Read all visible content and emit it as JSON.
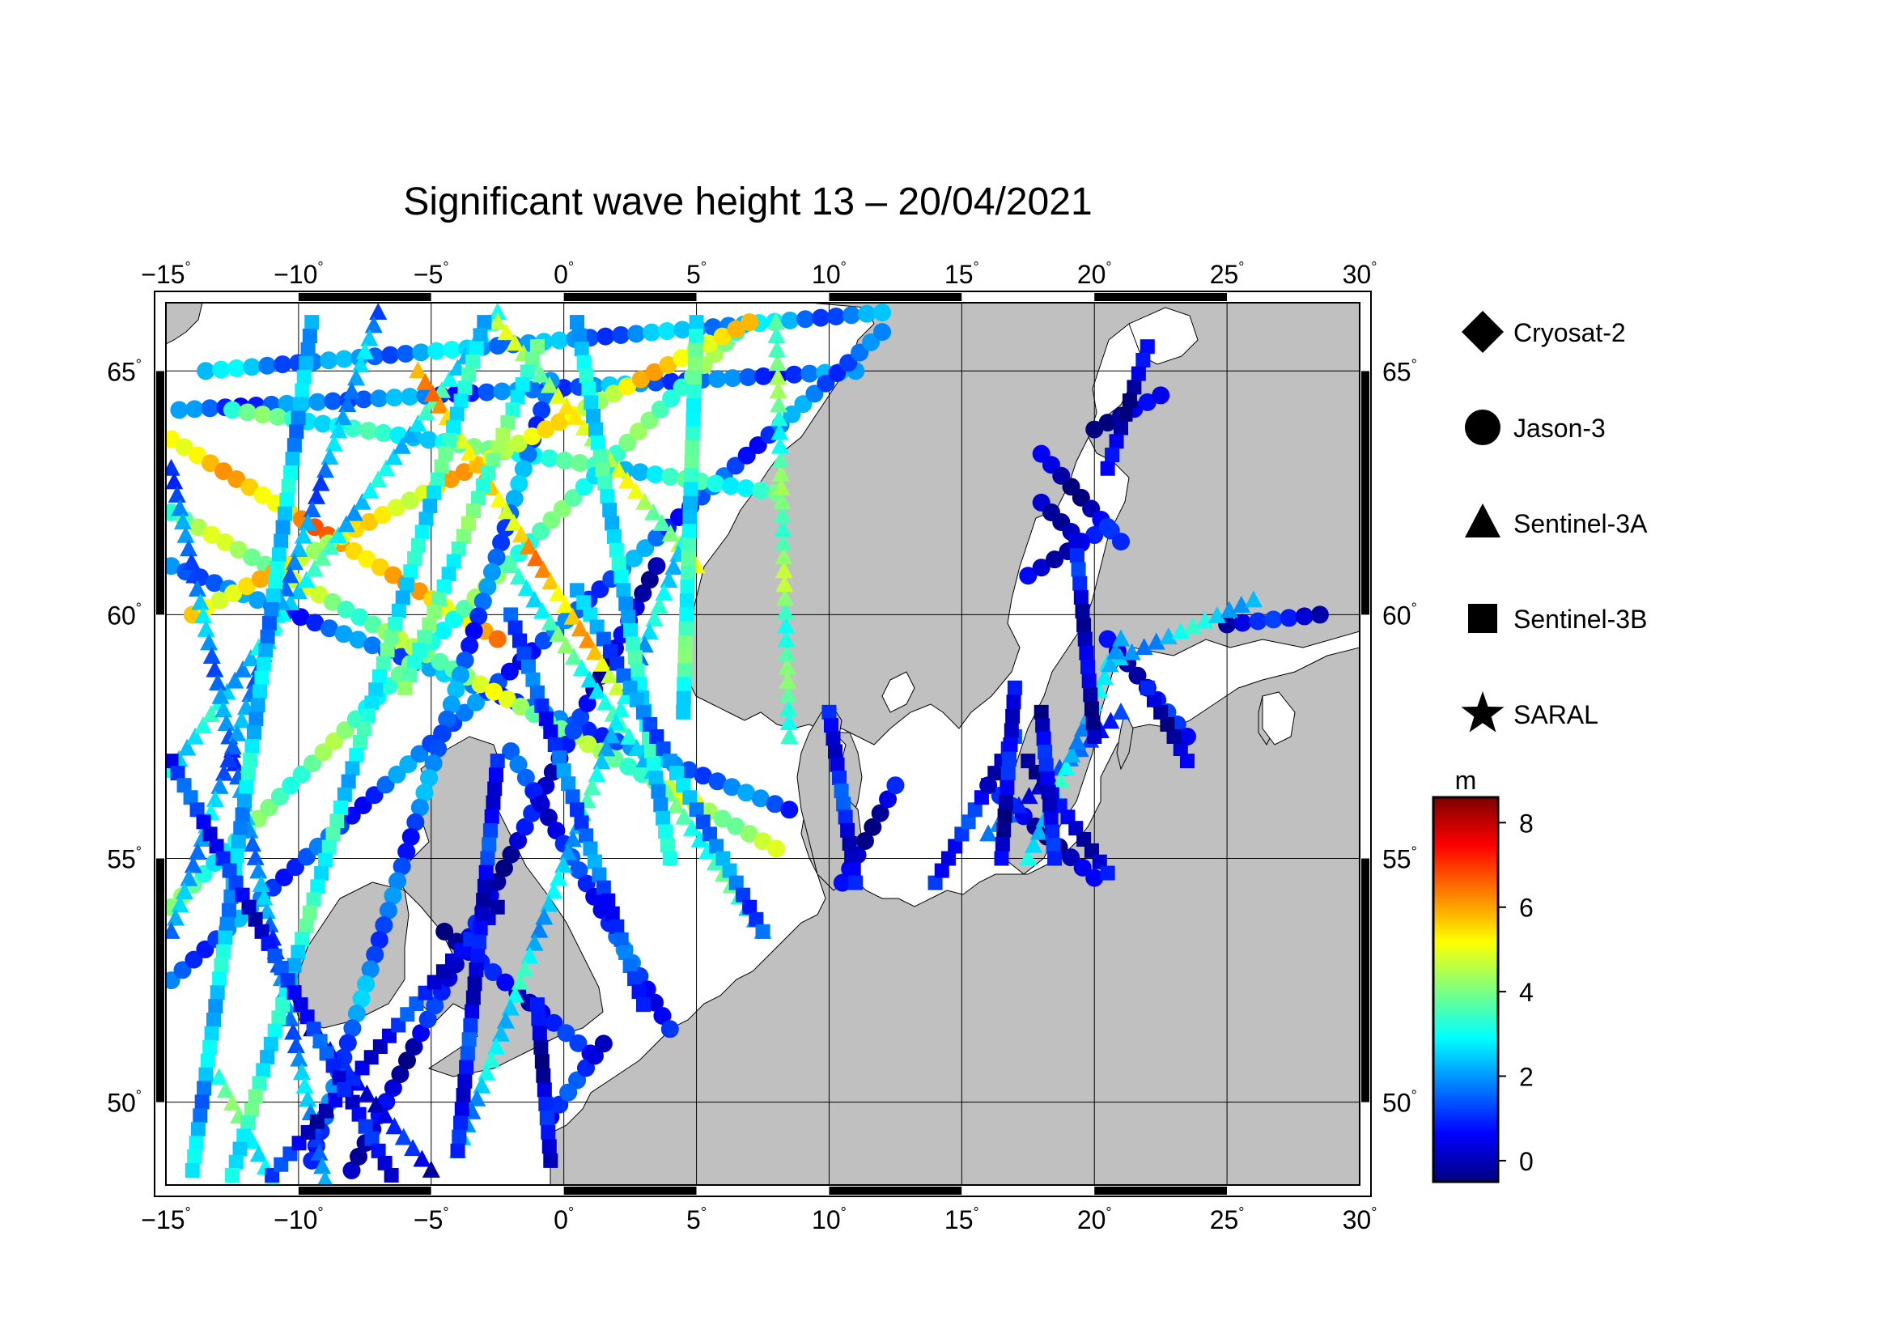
{
  "title": "Significant wave height 13 – 20/04/2021",
  "map": {
    "lon_range": [
      -15,
      30
    ],
    "lat_range": [
      48.3,
      66.4
    ],
    "lon_ticks": [
      "−15",
      "−10",
      "−5",
      "0",
      "5",
      "10",
      "15",
      "20",
      "25",
      "30"
    ],
    "lat_ticks": [
      "50",
      "55",
      "60",
      "65"
    ],
    "degree_symbol": "°",
    "land_color": "#c0c0c0",
    "sea_color": "#ffffff",
    "grid": true
  },
  "legend": {
    "satellites": [
      {
        "name": "Cryosat-2",
        "symbol": "diamond"
      },
      {
        "name": "Jason-3",
        "symbol": "circle"
      },
      {
        "name": "Sentinel-3A",
        "symbol": "triangle"
      },
      {
        "name": "Sentinel-3B",
        "symbol": "square"
      },
      {
        "name": "SARAL",
        "symbol": "star"
      }
    ]
  },
  "colorbar": {
    "unit": "m",
    "min": -0.5,
    "max": 8.6,
    "ticks": [
      "0",
      "2",
      "4",
      "6",
      "8"
    ],
    "colors": [
      "#00007f",
      "#0000ff",
      "#007fff",
      "#00ffff",
      "#7fff7f",
      "#ffff00",
      "#ff7f00",
      "#ff0000",
      "#7f0000"
    ]
  },
  "tracks": [
    {
      "symbol": "circle",
      "from": [
        -13.5,
        65.0
      ],
      "to": [
        12.0,
        66.2
      ],
      "h": 2.0
    },
    {
      "symbol": "circle",
      "from": [
        -14.5,
        64.2
      ],
      "to": [
        11.0,
        65.0
      ],
      "h": 1.6
    },
    {
      "symbol": "circle",
      "from": [
        -14.8,
        52.5
      ],
      "to": [
        12.0,
        65.8
      ],
      "h": 1.4
    },
    {
      "symbol": "circle",
      "from": [
        -14.8,
        61.0
      ],
      "to": [
        8.5,
        56.0
      ],
      "h": 1.6
    },
    {
      "symbol": "circle",
      "from": [
        -14.8,
        63.6
      ],
      "to": [
        -2.5,
        59.5
      ],
      "h": 5.8
    },
    {
      "symbol": "circle",
      "from": [
        -14.8,
        62.1
      ],
      "to": [
        8.0,
        55.2
      ],
      "h": 4.2
    },
    {
      "symbol": "circle",
      "from": [
        -12.5,
        64.2
      ],
      "to": [
        8.0,
        62.5
      ],
      "h": 3.2
    },
    {
      "symbol": "circle",
      "from": [
        -14.8,
        54.0
      ],
      "to": [
        6.5,
        65.8
      ],
      "h": 3.6
    },
    {
      "symbol": "circle",
      "from": [
        -0.5,
        64.8
      ],
      "to": [
        -9.5,
        48.8
      ],
      "h": 1.6
    },
    {
      "symbol": "circle",
      "from": [
        -14.0,
        60.0
      ],
      "to": [
        7.0,
        66.0
      ],
      "h": 5.2
    },
    {
      "symbol": "circle",
      "from": [
        -8.0,
        48.6
      ],
      "to": [
        3.5,
        61.0
      ],
      "h": 0.4
    },
    {
      "symbol": "circle",
      "from": [
        -4.5,
        53.5
      ],
      "to": [
        1.0,
        51.0
      ],
      "h": 0.4
    },
    {
      "symbol": "circle",
      "from": [
        -0.5,
        49.7
      ],
      "to": [
        1.5,
        51.2
      ],
      "h": 0.6
    },
    {
      "symbol": "circle",
      "from": [
        -2.0,
        57.2
      ],
      "to": [
        4.0,
        51.5
      ],
      "h": 1.0
    },
    {
      "symbol": "circle",
      "from": [
        18.0,
        63.3
      ],
      "to": [
        21.0,
        61.5
      ],
      "h": 0.2
    },
    {
      "symbol": "circle",
      "from": [
        17.5,
        60.8
      ],
      "to": [
        20.5,
        61.8
      ],
      "h": 0.2
    },
    {
      "symbol": "circle",
      "from": [
        18.0,
        62.3
      ],
      "to": [
        19.5,
        61.5
      ],
      "h": 0.2
    },
    {
      "symbol": "circle",
      "from": [
        20.0,
        63.8
      ],
      "to": [
        22.5,
        64.5
      ],
      "h": 0.2
    },
    {
      "symbol": "circle",
      "from": [
        25.0,
        59.8
      ],
      "to": [
        28.5,
        60.0
      ],
      "h": 0.3
    },
    {
      "symbol": "circle",
      "from": [
        16.0,
        56.5
      ],
      "to": [
        20.0,
        54.6
      ],
      "h": 0.2
    },
    {
      "symbol": "circle",
      "from": [
        10.5,
        54.5
      ],
      "to": [
        12.5,
        56.5
      ],
      "h": 0.3
    },
    {
      "symbol": "circle",
      "from": [
        20.5,
        59.5
      ],
      "to": [
        23.5,
        57.5
      ],
      "h": 0.3
    },
    {
      "symbol": "triangle",
      "from": [
        -14.8,
        56.8
      ],
      "to": [
        -2.5,
        66.2
      ],
      "h": 2.8
    },
    {
      "symbol": "triangle",
      "from": [
        -14.8,
        63.0
      ],
      "to": [
        -9.0,
        48.4
      ],
      "h": 1.8
    },
    {
      "symbol": "triangle",
      "from": [
        -7.0,
        66.2
      ],
      "to": [
        -14.8,
        53.5
      ],
      "h": 2.0
    },
    {
      "symbol": "triangle",
      "from": [
        -5.5,
        65.0
      ],
      "to": [
        2.0,
        58.5
      ],
      "h": 5.6
    },
    {
      "symbol": "triangle",
      "from": [
        5.0,
        61.0
      ],
      "to": [
        -2.5,
        66.0
      ],
      "h": 4.6
    },
    {
      "symbol": "triangle",
      "from": [
        -2.0,
        61.0
      ],
      "to": [
        7.5,
        53.5
      ],
      "h": 3.2
    },
    {
      "symbol": "triangle",
      "from": [
        4.5,
        61.5
      ],
      "to": [
        -4.0,
        49.0
      ],
      "h": 2.6
    },
    {
      "symbol": "triangle",
      "from": [
        8.5,
        57.5
      ],
      "to": [
        8.0,
        66.0
      ],
      "h": 3.8
    },
    {
      "symbol": "triangle",
      "from": [
        -9.5,
        51.5
      ],
      "to": [
        -5.0,
        48.6
      ],
      "h": 0.4
    },
    {
      "symbol": "triangle",
      "from": [
        -13.0,
        50.5
      ],
      "to": [
        -11.0,
        48.4
      ],
      "h": 3.2
    },
    {
      "symbol": "triangle",
      "from": [
        16.0,
        55.5
      ],
      "to": [
        21.0,
        58.0
      ],
      "h": 1.2
    },
    {
      "symbol": "triangle",
      "from": [
        20.5,
        59.0
      ],
      "to": [
        26.0,
        60.3
      ],
      "h": 2.4
    },
    {
      "symbol": "triangle",
      "from": [
        17.5,
        55.0
      ],
      "to": [
        21.0,
        59.5
      ],
      "h": 2.6
    },
    {
      "symbol": "square",
      "from": [
        -9.5,
        66.0
      ],
      "to": [
        -14.0,
        48.6
      ],
      "h": 2.4
    },
    {
      "symbol": "square",
      "from": [
        -3.0,
        66.0
      ],
      "to": [
        -12.5,
        48.5
      ],
      "h": 3.0
    },
    {
      "symbol": "square",
      "from": [
        -14.8,
        57.0
      ],
      "to": [
        -6.5,
        48.5
      ],
      "h": 0.8
    },
    {
      "symbol": "square",
      "from": [
        -11.0,
        48.5
      ],
      "to": [
        -2.5,
        54.0
      ],
      "h": 0.6
    },
    {
      "symbol": "square",
      "from": [
        -1.0,
        65.5
      ],
      "to": [
        -6.0,
        58.5
      ],
      "h": 3.6
    },
    {
      "symbol": "square",
      "from": [
        -2.5,
        57.0
      ],
      "to": [
        -4.0,
        49.0
      ],
      "h": 0.6
    },
    {
      "symbol": "square",
      "from": [
        -2.0,
        60.0
      ],
      "to": [
        3.0,
        52.0
      ],
      "h": 1.4
    },
    {
      "symbol": "square",
      "from": [
        0.5,
        66.0
      ],
      "to": [
        4.0,
        55.0
      ],
      "h": 2.8
    },
    {
      "symbol": "square",
      "from": [
        5.0,
        66.0
      ],
      "to": [
        4.5,
        58.0
      ],
      "h": 3.2
    },
    {
      "symbol": "square",
      "from": [
        0.5,
        60.5
      ],
      "to": [
        7.5,
        53.5
      ],
      "h": 1.8
    },
    {
      "symbol": "square",
      "from": [
        -1.0,
        52.0
      ],
      "to": [
        -0.5,
        48.8
      ],
      "h": 0.4
    },
    {
      "symbol": "square",
      "from": [
        10.0,
        58.0
      ],
      "to": [
        11.0,
        54.5
      ],
      "h": 0.6
    },
    {
      "symbol": "square",
      "from": [
        14.0,
        54.5
      ],
      "to": [
        17.0,
        57.5
      ],
      "h": 0.8
    },
    {
      "symbol": "square",
      "from": [
        17.5,
        57.0
      ],
      "to": [
        20.5,
        54.7
      ],
      "h": 0.4
    },
    {
      "symbol": "square",
      "from": [
        18.0,
        58.0
      ],
      "to": [
        18.5,
        55.0
      ],
      "h": 0.4
    },
    {
      "symbol": "square",
      "from": [
        19.3,
        61.5
      ],
      "to": [
        20.0,
        57.5
      ],
      "h": 0.3
    },
    {
      "symbol": "square",
      "from": [
        22.0,
        65.5
      ],
      "to": [
        20.5,
        63.0
      ],
      "h": 0.2
    },
    {
      "symbol": "square",
      "from": [
        23.5,
        57.0
      ],
      "to": [
        22.0,
        58.5
      ],
      "h": 0.2
    },
    {
      "symbol": "square",
      "from": [
        17.0,
        58.5
      ],
      "to": [
        16.5,
        55.0
      ],
      "h": 0.4
    }
  ]
}
